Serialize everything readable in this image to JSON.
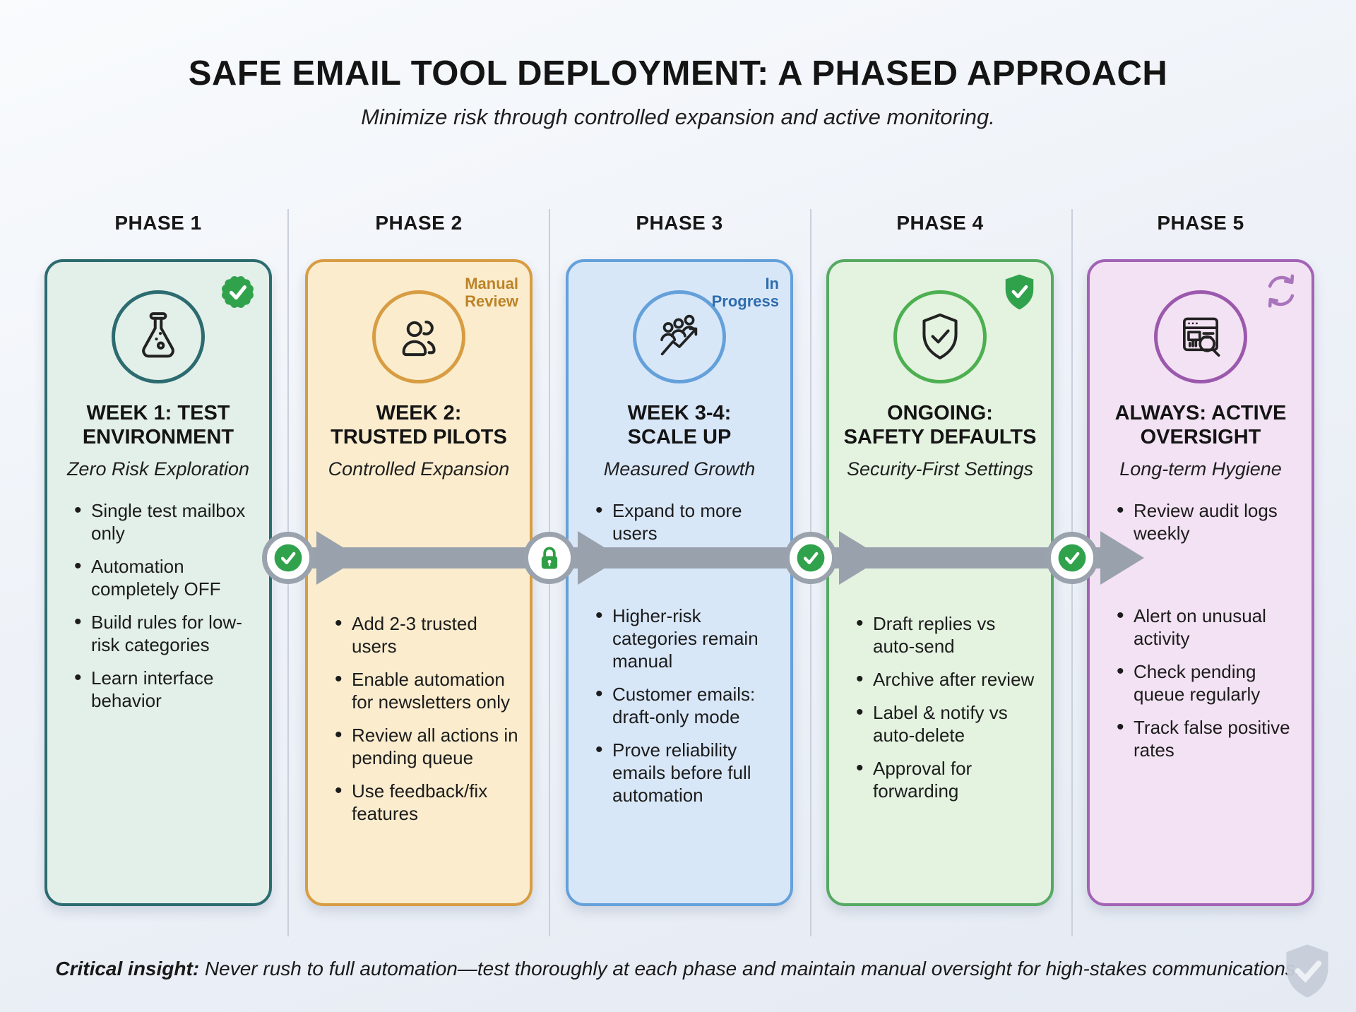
{
  "header": {
    "title": "SAFE EMAIL TOOL DEPLOYMENT: A PHASED APPROACH",
    "subtitle": "Minimize risk through controlled expansion and active monitoring."
  },
  "colors": {
    "arrow": "#99a1ac",
    "milestone_ring": "#9aa2ad",
    "status_green": "#31a24c",
    "watermark_gray": "#c7cdd9"
  },
  "phases": [
    {
      "label": "PHASE 1",
      "icon": "flask",
      "corner": {
        "type": "badge",
        "icon": "rosette-check"
      },
      "title_lines": [
        "WEEK 1: TEST",
        "ENVIRONMENT"
      ],
      "subtitle": "Zero Risk Exploration",
      "bullets_top": [
        "Single test mailbox only",
        "Automation completely OFF",
        "Build rules for low-risk categories",
        "Learn interface behavior"
      ],
      "bullets_bottom": [],
      "colors": {
        "border": "#2c6b70",
        "background": "#e3efe9",
        "ring": "#2c6b70"
      }
    },
    {
      "label": "PHASE 2",
      "icon": "users",
      "corner": {
        "type": "tag",
        "text": "Manual Review"
      },
      "title_lines": [
        "WEEK 2:",
        "TRUSTED PILOTS"
      ],
      "subtitle": "Controlled Expansion",
      "bullets_top": [],
      "bullets_bottom": [
        "Add 2-3 trusted users",
        "Enable automation for newsletters only",
        "Review all actions in pending queue",
        "Use feedback/fix features"
      ],
      "colors": {
        "border": "#d89c42",
        "background": "#faeccd",
        "ring": "#d89c42",
        "tag": "#bd8327"
      }
    },
    {
      "label": "PHASE 3",
      "icon": "growth",
      "corner": {
        "type": "tag",
        "text": "In Progress"
      },
      "title_lines": [
        "WEEK 3-4:",
        "SCALE UP"
      ],
      "subtitle": "Measured Growth",
      "bullets_top": [
        "Expand to more users"
      ],
      "bullets_bottom": [
        "Higher-risk categories remain manual",
        "Customer emails: draft-only mode",
        "Prove reliability emails before full automation"
      ],
      "colors": {
        "border": "#64a0da",
        "background": "#d8e7f8",
        "ring": "#64a0da",
        "tag": "#2e6cad"
      }
    },
    {
      "label": "PHASE 4",
      "icon": "shield-check",
      "corner": {
        "type": "badge",
        "icon": "shield-badge"
      },
      "title_lines": [
        "ONGOING:",
        "SAFETY DEFAULTS"
      ],
      "subtitle": "Security-First Settings",
      "bullets_top": [],
      "bullets_bottom": [
        "Draft replies vs auto-send",
        "Archive after review",
        "Label & notify vs auto-delete",
        "Approval for forwarding"
      ],
      "colors": {
        "border": "#56a962",
        "background": "#e4f2e0",
        "ring": "#4caf50"
      }
    },
    {
      "label": "PHASE 5",
      "icon": "monitor-search",
      "corner": {
        "type": "icon",
        "icon": "refresh"
      },
      "title_lines": [
        "ALWAYS: ACTIVE",
        "OVERSIGHT"
      ],
      "subtitle": "Long-term Hygiene",
      "bullets_top": [
        "Review audit logs weekly"
      ],
      "bullets_bottom": [
        "Alert on unusual activity",
        "Check pending queue regularly",
        "Track false positive rates"
      ],
      "colors": {
        "border": "#a263b5",
        "background": "#f3e2f3",
        "ring": "#9b59ad"
      }
    }
  ],
  "connectors": [
    {
      "icon": "check"
    },
    {
      "icon": "lock"
    },
    {
      "icon": "check"
    },
    {
      "icon": "check"
    }
  ],
  "footer": {
    "lead": "Critical insight:",
    "text": " Never rush to full automation—test thoroughly at each phase and maintain manual oversight for high-stakes communications."
  }
}
